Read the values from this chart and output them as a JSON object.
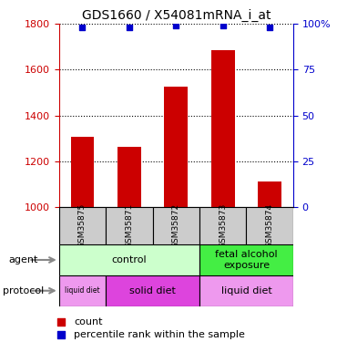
{
  "title": "GDS1660 / X54081mRNA_i_at",
  "samples": [
    "GSM35875",
    "GSM35871",
    "GSM35872",
    "GSM35873",
    "GSM35874"
  ],
  "counts": [
    1305,
    1262,
    1527,
    1685,
    1110
  ],
  "percentiles": [
    98,
    98,
    99,
    99,
    98
  ],
  "ylim_left": [
    1000,
    1800
  ],
  "ylim_right": [
    0,
    100
  ],
  "yticks_left": [
    1000,
    1200,
    1400,
    1600,
    1800
  ],
  "yticks_right": [
    0,
    25,
    50,
    75,
    100
  ],
  "bar_color": "#cc0000",
  "dot_color": "#0000cc",
  "bar_width": 0.5,
  "agent_groups": [
    {
      "text": "control",
      "span": [
        0,
        3
      ],
      "color": "#ccffcc"
    },
    {
      "text": "fetal alcohol\nexposure",
      "span": [
        3,
        5
      ],
      "color": "#44ee44"
    }
  ],
  "protocol_groups": [
    {
      "text": "liquid diet",
      "span": [
        0,
        1
      ],
      "color": "#ee99ee"
    },
    {
      "text": "solid diet",
      "span": [
        1,
        3
      ],
      "color": "#dd44dd"
    },
    {
      "text": "liquid diet",
      "span": [
        3,
        5
      ],
      "color": "#ee99ee"
    }
  ],
  "legend_count_label": "count",
  "legend_pct_label": "percentile rank within the sample",
  "title_fontsize": 10,
  "axis_color_left": "#cc0000",
  "axis_color_right": "#0000cc",
  "sample_box_color": "#cccccc",
  "grid_color": "#000000"
}
